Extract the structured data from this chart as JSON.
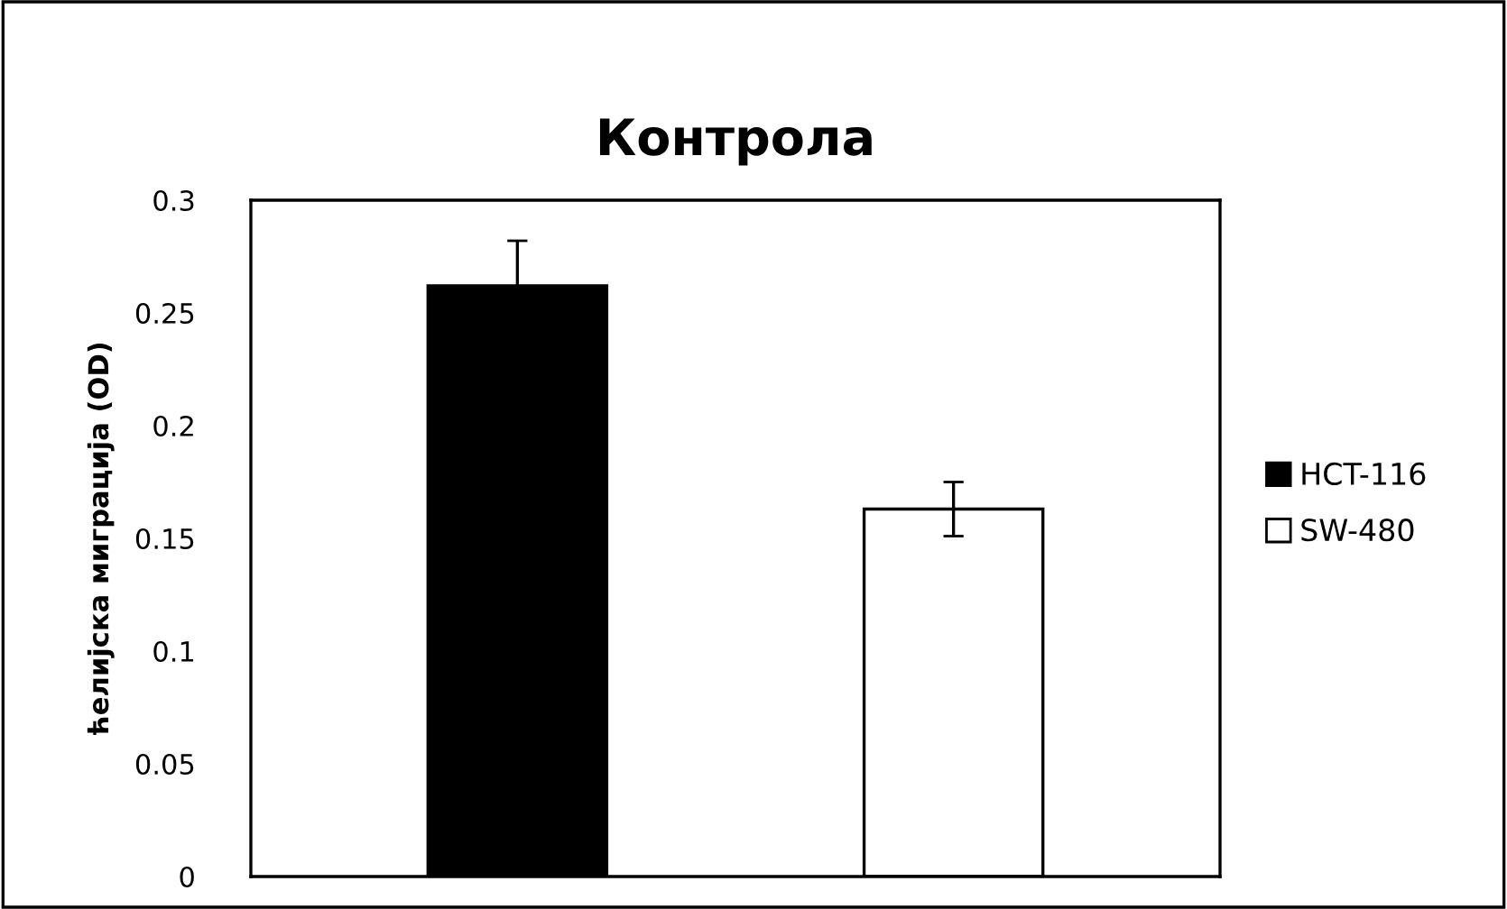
{
  "chart_data": {
    "type": "bar",
    "title": "Контрола",
    "ylabel": "ћелијска миграција (OD)",
    "categories": [
      null
    ],
    "series": [
      {
        "name": "HCT-116",
        "color": "#000000",
        "values": [
          0.262
        ],
        "errors": [
          0.02
        ]
      },
      {
        "name": "SW-480",
        "color": "#ffffff",
        "values": [
          0.163
        ],
        "errors": [
          0.012
        ]
      }
    ],
    "ylim": [
      0,
      0.3
    ],
    "yticks": [
      0,
      0.05,
      0.1,
      0.15,
      0.2,
      0.25,
      0.3
    ],
    "grid": false,
    "legend": "right"
  }
}
